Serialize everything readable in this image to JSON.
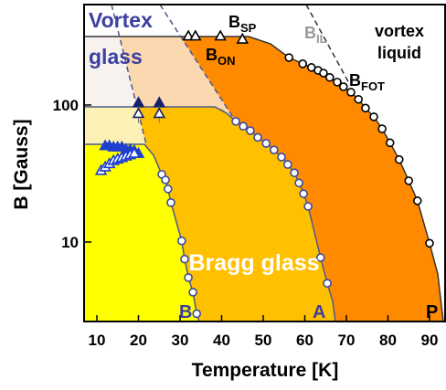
{
  "chart_data": {
    "type": "scatter",
    "x_label": "Temperature [K]",
    "y_label": "B [Gauss]",
    "xlim": [
      6.92,
      93.96
    ],
    "xticks": [
      10,
      20,
      30,
      40,
      50,
      60,
      70,
      80,
      90
    ],
    "ylim": [
      2.63,
      541
    ],
    "yticks": [
      10,
      100
    ],
    "y_log": true,
    "annotations": {
      "vortex_glass": [
        "Vortex",
        "glass"
      ],
      "b_sp": {
        "text": "B",
        "sub": "SP"
      },
      "b_on": {
        "text": "B",
        "sub": "ON"
      },
      "b_il": {
        "text": "B",
        "sub": "IL"
      },
      "vortex_liquid": [
        "vortex",
        "liquid"
      ],
      "b_fot": {
        "text": "B",
        "sub": "FOT"
      },
      "bragg_glass": "Bragg glass",
      "line_b": "B",
      "line_a": "A",
      "line_p": "P"
    },
    "series": [
      {
        "marker": "circle",
        "color": "#000000",
        "x": [
          56.2,
          59.5,
          61.6,
          63.2,
          64.5,
          66.0,
          67.8,
          69.3,
          71.1,
          72.9,
          74.6,
          76.6,
          78.6,
          80.5,
          82.7,
          85.0,
          87.1,
          90.0
        ],
        "values": [
          222,
          200,
          188,
          179,
          171,
          159,
          147,
          136,
          124,
          110,
          95,
          82,
          67,
          53,
          40,
          28,
          20,
          9.8
        ]
      },
      {
        "marker": "circle",
        "color": "#3a4aa0",
        "x": [
          43.4,
          45.2,
          46.9,
          48.7,
          50.7,
          52.6,
          54.4,
          55.9,
          57.5,
          58.6,
          59.7,
          60.8,
          63.8,
          65.4
        ],
        "values": [
          76,
          70,
          65,
          58,
          52.5,
          47,
          41.7,
          36.8,
          32,
          27,
          22.5,
          18.2,
          7.7,
          5.0
        ]
      },
      {
        "marker": "circle",
        "color": "#3a4aa0",
        "x": [
          25.6,
          26.5,
          27.1,
          27.8,
          30.4,
          31.1,
          32.0,
          33.1,
          34.0
        ],
        "values": [
          31.2,
          28.4,
          24.4,
          19.4,
          10.2,
          7.5,
          5.5,
          4.3,
          3.0
        ]
      },
      {
        "marker": "triangle-filled",
        "color": "#1f3fd0",
        "x": [
          12,
          13,
          14,
          15,
          16,
          17,
          18,
          19,
          20
        ],
        "values": [
          50,
          50,
          49,
          49,
          49,
          47,
          47,
          46,
          44
        ]
      },
      {
        "marker": "triangle-open",
        "color": "#1f3fd0",
        "x": [
          11,
          12,
          13,
          14,
          15,
          16,
          17,
          18,
          19
        ],
        "values": [
          33,
          35,
          37,
          39,
          40,
          41,
          42,
          43,
          44
        ]
      },
      {
        "marker": "triangle-filled",
        "color": "#14206a",
        "x": [
          20,
          25
        ],
        "values": [
          103,
          103
        ],
        "errors": [
          12,
          12
        ]
      },
      {
        "marker": "triangle-open",
        "color": "#14206a",
        "x": [
          20,
          25
        ],
        "values": [
          86,
          86
        ],
        "errors": [
          12,
          12
        ]
      },
      {
        "marker": "triangle-open",
        "color": "#000000",
        "x": [
          32,
          33.7,
          39.7,
          45
        ],
        "values": [
          316,
          316,
          316,
          300
        ]
      }
    ]
  }
}
